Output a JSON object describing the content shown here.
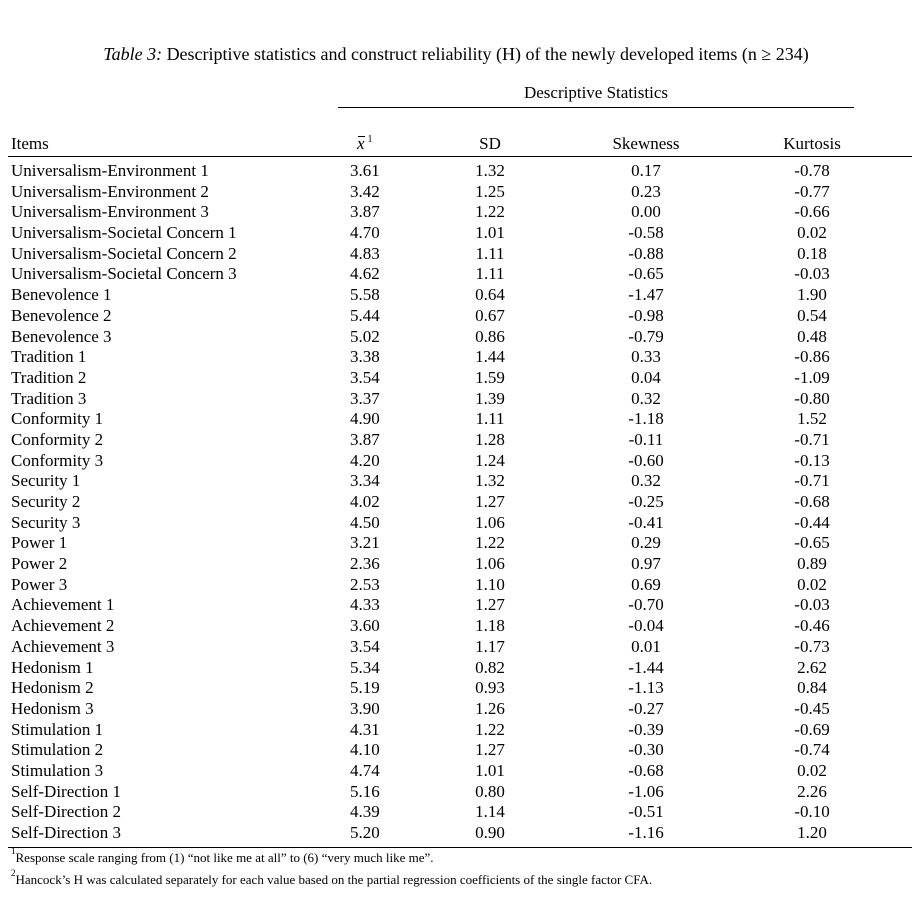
{
  "table": {
    "caption_label": "Table 3:",
    "caption_text": " Descriptive statistics and construct reliability (H) of the newly developed items (n ≥ 234)",
    "group_header": "Descriptive Statistics",
    "columns": {
      "items": "Items",
      "mean_symbol": "x",
      "mean_sup": "1",
      "sd": "SD",
      "skewness": "Skewness",
      "kurtosis": "Kurtosis"
    },
    "rows": [
      {
        "item": "Universalism-Environment 1",
        "mean": "3.61",
        "sd": "1.32",
        "skewness": "0.17",
        "kurtosis": "-0.78"
      },
      {
        "item": "Universalism-Environment 2",
        "mean": "3.42",
        "sd": "1.25",
        "skewness": "0.23",
        "kurtosis": "-0.77"
      },
      {
        "item": "Universalism-Environment 3",
        "mean": "3.87",
        "sd": "1.22",
        "skewness": "0.00",
        "kurtosis": "-0.66"
      },
      {
        "item": "Universalism-Societal Concern 1",
        "mean": "4.70",
        "sd": "1.01",
        "skewness": "-0.58",
        "kurtosis": "0.02"
      },
      {
        "item": "Universalism-Societal Concern 2",
        "mean": "4.83",
        "sd": "1.11",
        "skewness": "-0.88",
        "kurtosis": "0.18"
      },
      {
        "item": "Universalism-Societal Concern 3",
        "mean": "4.62",
        "sd": "1.11",
        "skewness": "-0.65",
        "kurtosis": "-0.03"
      },
      {
        "item": "Benevolence 1",
        "mean": "5.58",
        "sd": "0.64",
        "skewness": "-1.47",
        "kurtosis": "1.90"
      },
      {
        "item": "Benevolence 2",
        "mean": "5.44",
        "sd": "0.67",
        "skewness": "-0.98",
        "kurtosis": "0.54"
      },
      {
        "item": "Benevolence 3",
        "mean": "5.02",
        "sd": "0.86",
        "skewness": "-0.79",
        "kurtosis": "0.48"
      },
      {
        "item": "Tradition 1",
        "mean": "3.38",
        "sd": "1.44",
        "skewness": "0.33",
        "kurtosis": "-0.86"
      },
      {
        "item": "Tradition 2",
        "mean": "3.54",
        "sd": "1.59",
        "skewness": "0.04",
        "kurtosis": "-1.09"
      },
      {
        "item": "Tradition 3",
        "mean": "3.37",
        "sd": "1.39",
        "skewness": "0.32",
        "kurtosis": "-0.80"
      },
      {
        "item": "Conformity 1",
        "mean": "4.90",
        "sd": "1.11",
        "skewness": "-1.18",
        "kurtosis": "1.52"
      },
      {
        "item": "Conformity 2",
        "mean": "3.87",
        "sd": "1.28",
        "skewness": "-0.11",
        "kurtosis": "-0.71"
      },
      {
        "item": "Conformity 3",
        "mean": "4.20",
        "sd": "1.24",
        "skewness": "-0.60",
        "kurtosis": "-0.13"
      },
      {
        "item": "Security 1",
        "mean": "3.34",
        "sd": "1.32",
        "skewness": "0.32",
        "kurtosis": "-0.71"
      },
      {
        "item": "Security 2",
        "mean": "4.02",
        "sd": "1.27",
        "skewness": "-0.25",
        "kurtosis": "-0.68"
      },
      {
        "item": "Security 3",
        "mean": "4.50",
        "sd": "1.06",
        "skewness": "-0.41",
        "kurtosis": "-0.44"
      },
      {
        "item": "Power 1",
        "mean": "3.21",
        "sd": "1.22",
        "skewness": "0.29",
        "kurtosis": "-0.65"
      },
      {
        "item": "Power 2",
        "mean": "2.36",
        "sd": "1.06",
        "skewness": "0.97",
        "kurtosis": "0.89"
      },
      {
        "item": "Power 3",
        "mean": "2.53",
        "sd": "1.10",
        "skewness": "0.69",
        "kurtosis": "0.02"
      },
      {
        "item": "Achievement 1",
        "mean": "4.33",
        "sd": "1.27",
        "skewness": "-0.70",
        "kurtosis": "-0.03"
      },
      {
        "item": "Achievement 2",
        "mean": "3.60",
        "sd": "1.18",
        "skewness": "-0.04",
        "kurtosis": "-0.46"
      },
      {
        "item": "Achievement 3",
        "mean": "3.54",
        "sd": "1.17",
        "skewness": "0.01",
        "kurtosis": "-0.73"
      },
      {
        "item": "Hedonism 1",
        "mean": "5.34",
        "sd": "0.82",
        "skewness": "-1.44",
        "kurtosis": "2.62"
      },
      {
        "item": "Hedonism 2",
        "mean": "5.19",
        "sd": "0.93",
        "skewness": "-1.13",
        "kurtosis": "0.84"
      },
      {
        "item": "Hedonism 3",
        "mean": "3.90",
        "sd": "1.26",
        "skewness": "-0.27",
        "kurtosis": "-0.45"
      },
      {
        "item": "Stimulation 1",
        "mean": "4.31",
        "sd": "1.22",
        "skewness": "-0.39",
        "kurtosis": "-0.69"
      },
      {
        "item": "Stimulation 2",
        "mean": "4.10",
        "sd": "1.27",
        "skewness": "-0.30",
        "kurtosis": "-0.74"
      },
      {
        "item": "Stimulation 3",
        "mean": "4.74",
        "sd": "1.01",
        "skewness": "-0.68",
        "kurtosis": "0.02"
      },
      {
        "item": "Self-Direction 1",
        "mean": "5.16",
        "sd": "0.80",
        "skewness": "-1.06",
        "kurtosis": "2.26"
      },
      {
        "item": "Self-Direction 2",
        "mean": "4.39",
        "sd": "1.14",
        "skewness": "-0.51",
        "kurtosis": "-0.10"
      },
      {
        "item": "Self-Direction 3",
        "mean": "5.20",
        "sd": "0.90",
        "skewness": "-1.16",
        "kurtosis": "1.20"
      }
    ]
  },
  "footnotes": [
    {
      "marker": "1",
      "text": "Response scale ranging from (1) “not like me at all” to (6) “very much like me”."
    },
    {
      "marker": "2",
      "text": "Hancock’s H was calculated separately for each value based on the partial regression coefficients of the single factor CFA."
    }
  ]
}
